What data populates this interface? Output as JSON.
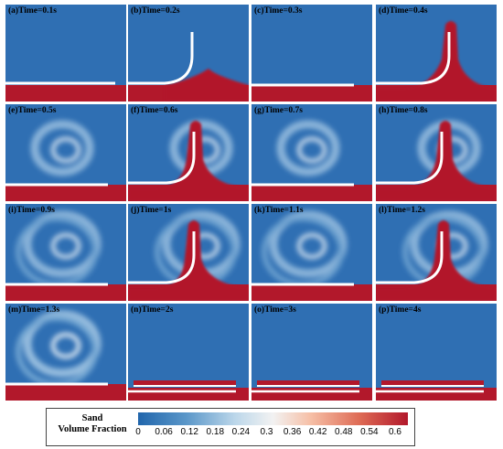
{
  "panels": [
    {
      "label": "(a)Time=0.1s",
      "stage": 0
    },
    {
      "label": "(b)Time=0.2s",
      "stage": 1
    },
    {
      "label": "(c)Time=0.3s",
      "stage": 2
    },
    {
      "label": "(d)Time=0.4s",
      "stage": 3
    },
    {
      "label": "(e)Time=0.5s",
      "stage": 4
    },
    {
      "label": "(f)Time=0.6s",
      "stage": 5
    },
    {
      "label": "(g)Time=0.7s",
      "stage": 6
    },
    {
      "label": "(h)Time=0.8s",
      "stage": 7
    },
    {
      "label": "(i)Time=0.9s",
      "stage": 8
    },
    {
      "label": "(j)Time=1s",
      "stage": 9
    },
    {
      "label": "(k)Time=1.1s",
      "stage": 10
    },
    {
      "label": "(l)Time=1.2s",
      "stage": 11
    },
    {
      "label": "(m)Time=1.3s",
      "stage": 12
    },
    {
      "label": "(n)Time=2s",
      "stage": 13
    },
    {
      "label": "(o)Time=3s",
      "stage": 14
    },
    {
      "label": "(p)Time=4s",
      "stage": 15
    }
  ],
  "legend": {
    "title_line1": "Sand",
    "title_line2": "Volume Fraction",
    "ticks": [
      "0",
      "0.06",
      "0.12",
      "0.18",
      "0.24",
      "0.3",
      "0.36",
      "0.42",
      "0.48",
      "0.54",
      "0.6"
    ],
    "min": 0,
    "max": 0.63
  },
  "colors": {
    "low": "#2f6fb3",
    "mid": "#f2f2f2",
    "high": "#b2182b"
  }
}
